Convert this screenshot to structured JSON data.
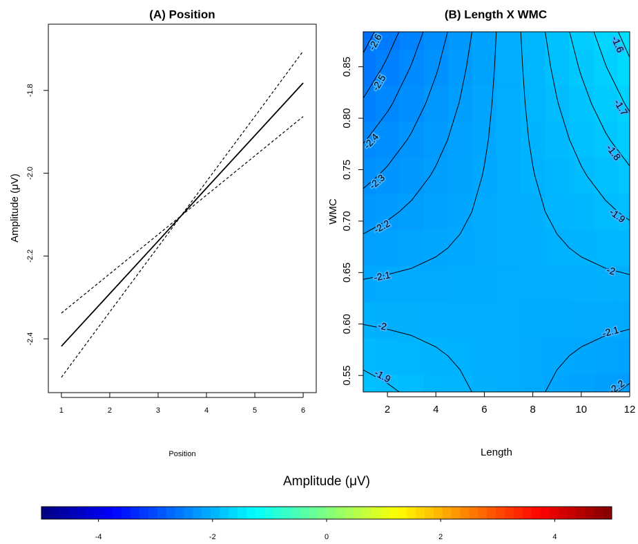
{
  "chart_data": [
    {
      "type": "line",
      "title": "(A) Position",
      "xlabel": "Position",
      "ylabel": "Amplitude (μV)",
      "x": [
        1,
        2,
        3,
        4,
        5,
        6
      ],
      "series": [
        {
          "color": "#000000",
          "dash": false,
          "values": [
            -2.418,
            -2.291,
            -2.164,
            -2.036,
            -1.909,
            -1.782
          ]
        },
        {
          "color": "#000000",
          "dash": true,
          "values": [
            -2.338,
            -2.243,
            -2.148,
            -2.053,
            -1.958,
            -1.863
          ]
        },
        {
          "color": "#000000",
          "dash": true,
          "values": [
            -2.493,
            -2.335,
            -2.178,
            -2.02,
            -1.863,
            -1.705
          ]
        }
      ],
      "xlim": [
        0.73,
        6.27
      ],
      "xticks": [
        1,
        2,
        3,
        4,
        5,
        6
      ],
      "ylim": [
        -2.53,
        -1.64
      ],
      "yticks": [
        -2.4,
        -2.2,
        {
          "value": -2,
          "label": "-2.0"
        },
        -1.8
      ]
    },
    {
      "type": "contour",
      "title": "(B) Length X WMC",
      "xlabel": "Length",
      "ylabel": "WMC",
      "x": [
        1,
        2,
        3,
        4,
        5,
        6,
        7,
        8,
        9,
        10,
        11,
        12
      ],
      "y": [
        0.534,
        0.569,
        0.604,
        0.639,
        0.674,
        0.709,
        0.744,
        0.779,
        0.814,
        0.849,
        0.884
      ],
      "z": [
        [
          -1.851,
          -1.884,
          -1.917,
          -1.951,
          -1.984,
          -2.017,
          -2.05,
          -2.083,
          -2.116,
          -2.149,
          -2.183,
          -2.216
        ],
        [
          -1.931,
          -1.951,
          -1.97,
          -1.99,
          -2.01,
          -2.03,
          -2.05,
          -2.07,
          -2.09,
          -2.11,
          -2.13,
          -2.149
        ],
        [
          -2.01,
          -2.017,
          -2.023,
          -2.03,
          -2.037,
          -2.043,
          -2.05,
          -2.057,
          -2.063,
          -2.07,
          -2.077,
          -2.083
        ],
        [
          -2.09,
          -2.083,
          -2.077,
          -2.07,
          -2.063,
          -2.057,
          -2.05,
          -2.043,
          -2.037,
          -2.03,
          -2.023,
          -2.017
        ],
        [
          -2.169,
          -2.149,
          -2.13,
          -2.11,
          -2.09,
          -2.07,
          -2.05,
          -2.03,
          -2.01,
          -1.99,
          -1.97,
          -1.951
        ],
        [
          -2.249,
          -2.216,
          -2.183,
          -2.149,
          -2.116,
          -2.083,
          -2.05,
          -2.017,
          -1.984,
          -1.951,
          -1.917,
          -1.884
        ],
        [
          -2.328,
          -2.282,
          -2.236,
          -2.189,
          -2.143,
          -2.096,
          -2.05,
          -2.004,
          -1.957,
          -1.911,
          -1.864,
          -1.818
        ],
        [
          -2.408,
          -2.348,
          -2.289,
          -2.229,
          -2.169,
          -2.11,
          -2.05,
          -1.99,
          -1.931,
          -1.871,
          -1.811,
          -1.752
        ],
        [
          -2.488,
          -2.415,
          -2.342,
          -2.269,
          -2.196,
          -2.123,
          -2.05,
          -1.977,
          -1.904,
          -1.831,
          -1.758,
          -1.685
        ],
        [
          -2.567,
          -2.481,
          -2.394,
          -2.309,
          -2.222,
          -2.136,
          -2.05,
          -1.964,
          -1.878,
          -1.791,
          -1.705,
          -1.619
        ],
        [
          -2.647,
          -2.547,
          -2.448,
          -2.348,
          -2.249,
          -2.149,
          -2.05,
          -1.951,
          -1.851,
          -1.752,
          -1.652,
          -1.553
        ]
      ],
      "levels": [
        -2.6,
        -2.5,
        -2.4,
        -2.3,
        -2.2,
        -2.1,
        -2,
        -1.9,
        -1.8,
        -1.7,
        -1.6
      ],
      "xlim": [
        1,
        12
      ],
      "xticks": [
        2,
        4,
        6,
        8,
        10,
        12
      ],
      "ylim": [
        0.534,
        0.884
      ],
      "yticks": [
        0.55,
        {
          "value": 0.6,
          "label": "0.60"
        },
        0.65,
        {
          "value": 0.7,
          "label": "0.70"
        },
        0.75,
        {
          "value": 0.8,
          "label": "0.80"
        },
        0.85
      ],
      "colorbar": {
        "title": "Amplitude (μV)",
        "lim": [
          -5,
          5
        ],
        "ticks": [
          -4,
          -2,
          0,
          2,
          4
        ],
        "colors": [
          "#00007F",
          "#0000FF",
          "#007FFF",
          "#00FFFF",
          "#7FFF7F",
          "#FFFF00",
          "#FF7F00",
          "#FF0000",
          "#7F0000"
        ]
      }
    }
  ]
}
